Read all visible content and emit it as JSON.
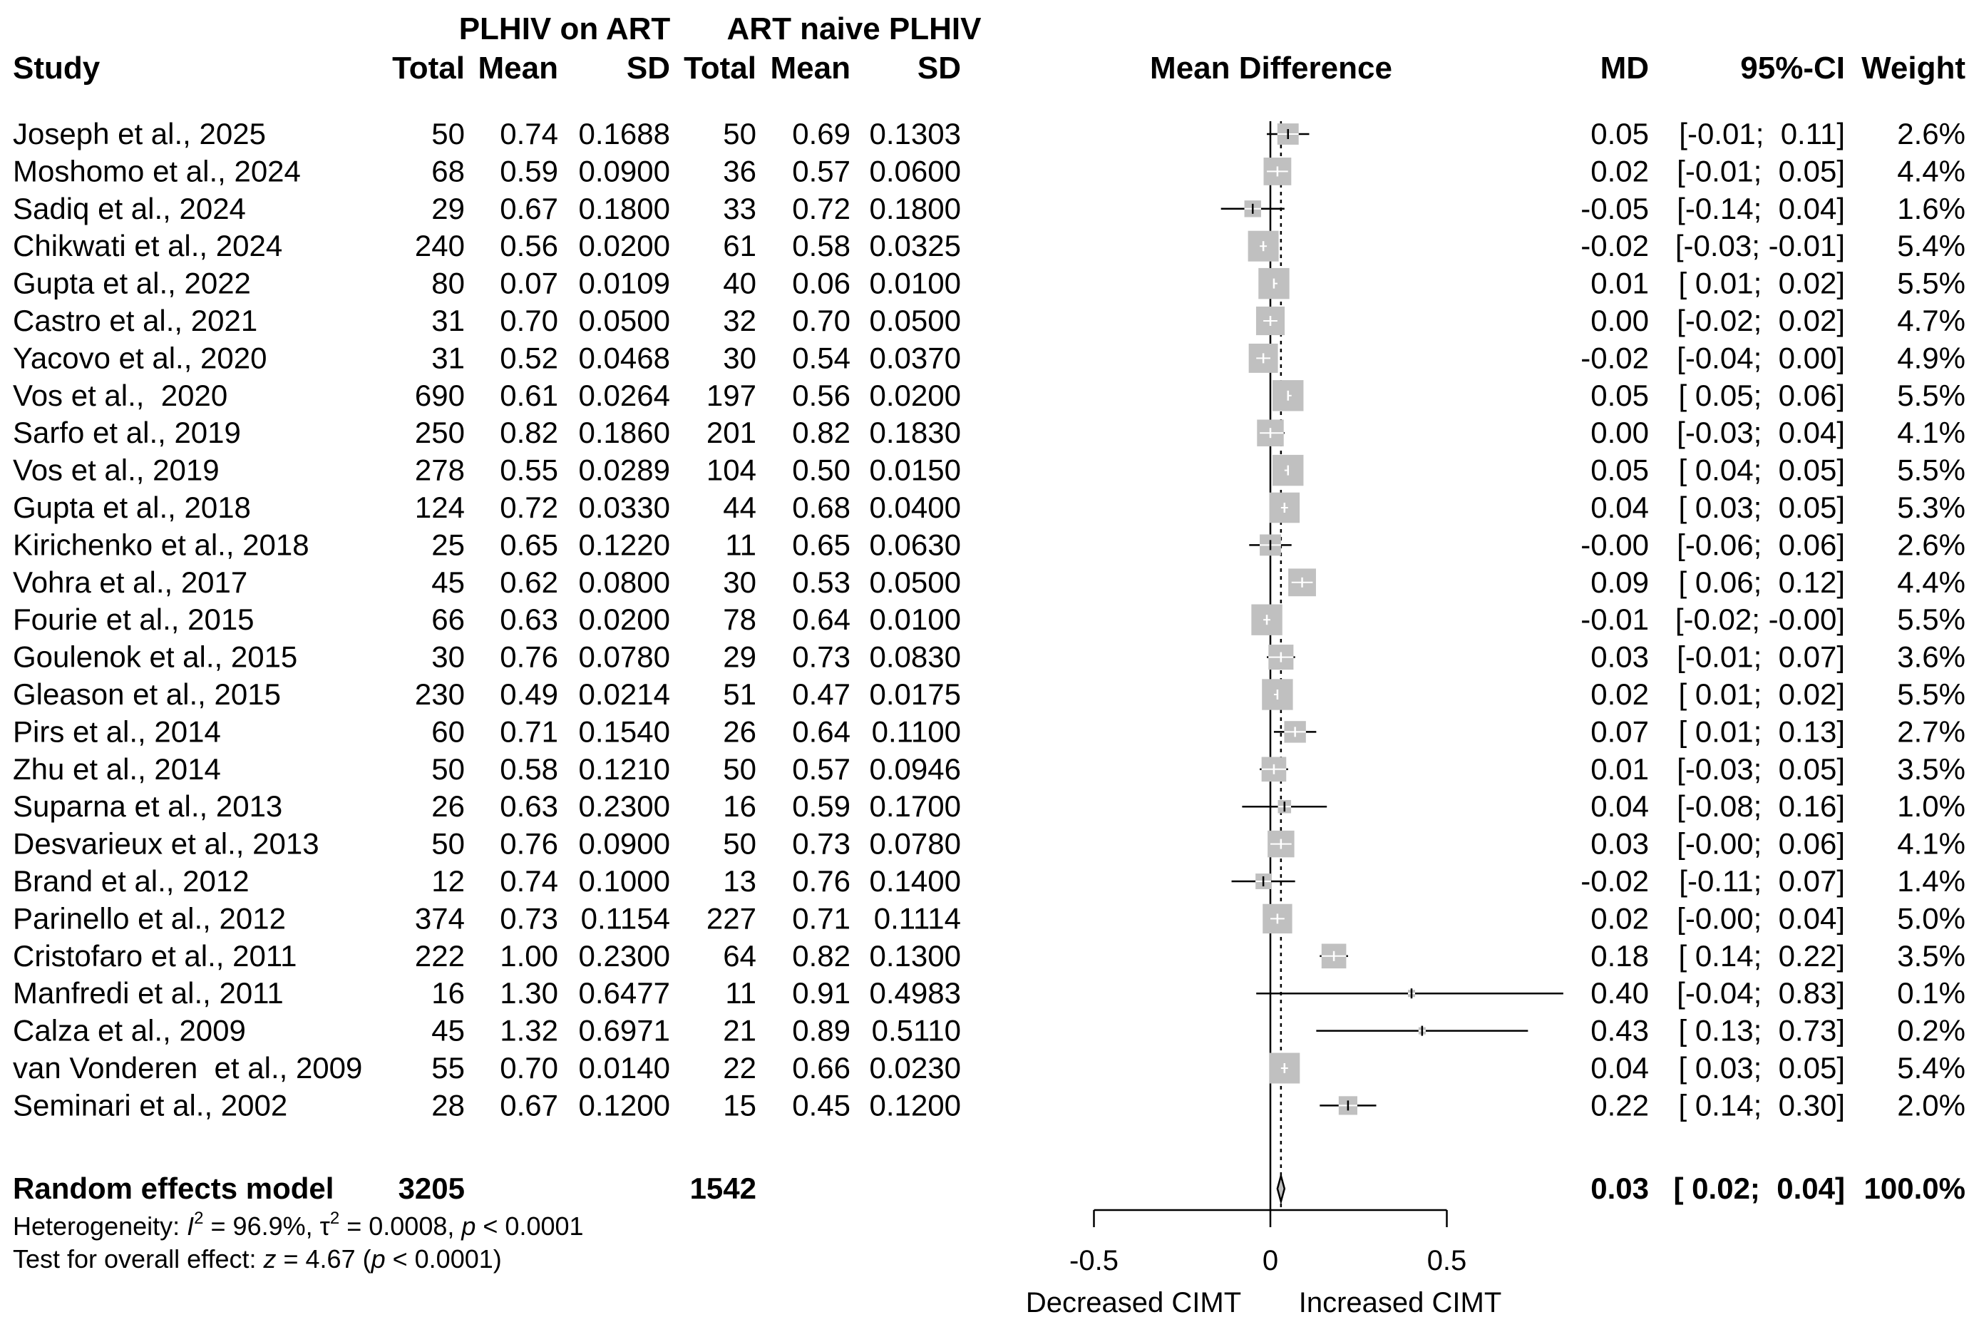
{
  "chart_data": {
    "type": "forest",
    "headers": {
      "group1": "PLHIV on ART",
      "group2": "ART naive PLHIV",
      "study": "Study",
      "total": "Total",
      "mean": "Mean",
      "sd": "SD",
      "plot": "Mean Difference",
      "md": "MD",
      "ci": "95%-CI",
      "weight": "Weight"
    },
    "studies": [
      {
        "study": "Joseph et al., 2025",
        "t1": "50",
        "m1": "0.74",
        "s1": "0.1688",
        "t2": "50",
        "m2": "0.69",
        "s2": "0.1303",
        "md_text": "0.05",
        "ci_text": "[-0.01;  0.11]",
        "w_text": "2.6%",
        "md": 0.05,
        "lo": -0.01,
        "hi": 0.11,
        "w": 2.6
      },
      {
        "study": "Moshomo et al., 2024",
        "t1": "68",
        "m1": "0.59",
        "s1": "0.0900",
        "t2": "36",
        "m2": "0.57",
        "s2": "0.0600",
        "md_text": "0.02",
        "ci_text": "[-0.01;  0.05]",
        "w_text": "4.4%",
        "md": 0.02,
        "lo": -0.01,
        "hi": 0.05,
        "w": 4.4
      },
      {
        "study": "Sadiq et al., 2024",
        "t1": "29",
        "m1": "0.67",
        "s1": "0.1800",
        "t2": "33",
        "m2": "0.72",
        "s2": "0.1800",
        "md_text": "-0.05",
        "ci_text": "[-0.14;  0.04]",
        "w_text": "1.6%",
        "md": -0.05,
        "lo": -0.14,
        "hi": 0.04,
        "w": 1.6
      },
      {
        "study": "Chikwati et al., 2024",
        "t1": "240",
        "m1": "0.56",
        "s1": "0.0200",
        "t2": "61",
        "m2": "0.58",
        "s2": "0.0325",
        "md_text": "-0.02",
        "ci_text": "[-0.03; -0.01]",
        "w_text": "5.4%",
        "md": -0.02,
        "lo": -0.03,
        "hi": -0.01,
        "w": 5.4
      },
      {
        "study": "Gupta et al., 2022",
        "t1": "80",
        "m1": "0.07",
        "s1": "0.0109",
        "t2": "40",
        "m2": "0.06",
        "s2": "0.0100",
        "md_text": "0.01",
        "ci_text": "[ 0.01;  0.02]",
        "w_text": "5.5%",
        "md": 0.01,
        "lo": 0.01,
        "hi": 0.02,
        "w": 5.5
      },
      {
        "study": "Castro et al., 2021",
        "t1": "31",
        "m1": "0.70",
        "s1": "0.0500",
        "t2": "32",
        "m2": "0.70",
        "s2": "0.0500",
        "md_text": "0.00",
        "ci_text": "[-0.02;  0.02]",
        "w_text": "4.7%",
        "md": 0.0,
        "lo": -0.02,
        "hi": 0.02,
        "w": 4.7
      },
      {
        "study": "Yacovo et al., 2020",
        "t1": "31",
        "m1": "0.52",
        "s1": "0.0468",
        "t2": "30",
        "m2": "0.54",
        "s2": "0.0370",
        "md_text": "-0.02",
        "ci_text": "[-0.04;  0.00]",
        "w_text": "4.9%",
        "md": -0.02,
        "lo": -0.04,
        "hi": 0.0,
        "w": 4.9
      },
      {
        "study": "Vos et al.,  2020",
        "t1": "690",
        "m1": "0.61",
        "s1": "0.0264",
        "t2": "197",
        "m2": "0.56",
        "s2": "0.0200",
        "md_text": "0.05",
        "ci_text": "[ 0.05;  0.06]",
        "w_text": "5.5%",
        "md": 0.05,
        "lo": 0.05,
        "hi": 0.06,
        "w": 5.5
      },
      {
        "study": "Sarfo et al., 2019",
        "t1": "250",
        "m1": "0.82",
        "s1": "0.1860",
        "t2": "201",
        "m2": "0.82",
        "s2": "0.1830",
        "md_text": "0.00",
        "ci_text": "[-0.03;  0.04]",
        "w_text": "4.1%",
        "md": 0.0,
        "lo": -0.03,
        "hi": 0.04,
        "w": 4.1
      },
      {
        "study": "Vos et al., 2019",
        "t1": "278",
        "m1": "0.55",
        "s1": "0.0289",
        "t2": "104",
        "m2": "0.50",
        "s2": "0.0150",
        "md_text": "0.05",
        "ci_text": "[ 0.04;  0.05]",
        "w_text": "5.5%",
        "md": 0.05,
        "lo": 0.04,
        "hi": 0.05,
        "w": 5.5
      },
      {
        "study": "Gupta et al., 2018",
        "t1": "124",
        "m1": "0.72",
        "s1": "0.0330",
        "t2": "44",
        "m2": "0.68",
        "s2": "0.0400",
        "md_text": "0.04",
        "ci_text": "[ 0.03;  0.05]",
        "w_text": "5.3%",
        "md": 0.04,
        "lo": 0.03,
        "hi": 0.05,
        "w": 5.3
      },
      {
        "study": "Kirichenko et al., 2018",
        "t1": "25",
        "m1": "0.65",
        "s1": "0.1220",
        "t2": "11",
        "m2": "0.65",
        "s2": "0.0630",
        "md_text": "-0.00",
        "ci_text": "[-0.06;  0.06]",
        "w_text": "2.6%",
        "md": 0.0,
        "lo": -0.06,
        "hi": 0.06,
        "w": 2.6
      },
      {
        "study": "Vohra et al., 2017",
        "t1": "45",
        "m1": "0.62",
        "s1": "0.0800",
        "t2": "30",
        "m2": "0.53",
        "s2": "0.0500",
        "md_text": "0.09",
        "ci_text": "[ 0.06;  0.12]",
        "w_text": "4.4%",
        "md": 0.09,
        "lo": 0.06,
        "hi": 0.12,
        "w": 4.4
      },
      {
        "study": "Fourie et al., 2015",
        "t1": "66",
        "m1": "0.63",
        "s1": "0.0200",
        "t2": "78",
        "m2": "0.64",
        "s2": "0.0100",
        "md_text": "-0.01",
        "ci_text": "[-0.02; -0.00]",
        "w_text": "5.5%",
        "md": -0.01,
        "lo": -0.02,
        "hi": 0.0,
        "w": 5.5
      },
      {
        "study": "Goulenok et al., 2015",
        "t1": "30",
        "m1": "0.76",
        "s1": "0.0780",
        "t2": "29",
        "m2": "0.73",
        "s2": "0.0830",
        "md_text": "0.03",
        "ci_text": "[-0.01;  0.07]",
        "w_text": "3.6%",
        "md": 0.03,
        "lo": -0.01,
        "hi": 0.07,
        "w": 3.6
      },
      {
        "study": "Gleason et al., 2015",
        "t1": "230",
        "m1": "0.49",
        "s1": "0.0214",
        "t2": "51",
        "m2": "0.47",
        "s2": "0.0175",
        "md_text": "0.02",
        "ci_text": "[ 0.01;  0.02]",
        "w_text": "5.5%",
        "md": 0.02,
        "lo": 0.01,
        "hi": 0.02,
        "w": 5.5
      },
      {
        "study": "Pirs et al., 2014",
        "t1": "60",
        "m1": "0.71",
        "s1": "0.1540",
        "t2": "26",
        "m2": "0.64",
        "s2": "0.1100",
        "md_text": "0.07",
        "ci_text": "[ 0.01;  0.13]",
        "w_text": "2.7%",
        "md": 0.07,
        "lo": 0.01,
        "hi": 0.13,
        "w": 2.7
      },
      {
        "study": "Zhu et al., 2014",
        "t1": "50",
        "m1": "0.58",
        "s1": "0.1210",
        "t2": "50",
        "m2": "0.57",
        "s2": "0.0946",
        "md_text": "0.01",
        "ci_text": "[-0.03;  0.05]",
        "w_text": "3.5%",
        "md": 0.01,
        "lo": -0.03,
        "hi": 0.05,
        "w": 3.5
      },
      {
        "study": "Suparna et al., 2013",
        "t1": "26",
        "m1": "0.63",
        "s1": "0.2300",
        "t2": "16",
        "m2": "0.59",
        "s2": "0.1700",
        "md_text": "0.04",
        "ci_text": "[-0.08;  0.16]",
        "w_text": "1.0%",
        "md": 0.04,
        "lo": -0.08,
        "hi": 0.16,
        "w": 1.0
      },
      {
        "study": "Desvarieux et al., 2013",
        "t1": "50",
        "m1": "0.76",
        "s1": "0.0900",
        "t2": "50",
        "m2": "0.73",
        "s2": "0.0780",
        "md_text": "0.03",
        "ci_text": "[-0.00;  0.06]",
        "w_text": "4.1%",
        "md": 0.03,
        "lo": 0.0,
        "hi": 0.06,
        "w": 4.1
      },
      {
        "study": "Brand et al., 2012",
        "t1": "12",
        "m1": "0.74",
        "s1": "0.1000",
        "t2": "13",
        "m2": "0.76",
        "s2": "0.1400",
        "md_text": "-0.02",
        "ci_text": "[-0.11;  0.07]",
        "w_text": "1.4%",
        "md": -0.02,
        "lo": -0.11,
        "hi": 0.07,
        "w": 1.4
      },
      {
        "study": "Parinello et al., 2012",
        "t1": "374",
        "m1": "0.73",
        "s1": "0.1154",
        "t2": "227",
        "m2": "0.71",
        "s2": "0.1114",
        "md_text": "0.02",
        "ci_text": "[-0.00;  0.04]",
        "w_text": "5.0%",
        "md": 0.02,
        "lo": 0.0,
        "hi": 0.04,
        "w": 5.0
      },
      {
        "study": "Cristofaro et al., 2011",
        "t1": "222",
        "m1": "1.00",
        "s1": "0.2300",
        "t2": "64",
        "m2": "0.82",
        "s2": "0.1300",
        "md_text": "0.18",
        "ci_text": "[ 0.14;  0.22]",
        "w_text": "3.5%",
        "md": 0.18,
        "lo": 0.14,
        "hi": 0.22,
        "w": 3.5
      },
      {
        "study": "Manfredi et al., 2011",
        "t1": "16",
        "m1": "1.30",
        "s1": "0.6477",
        "t2": "11",
        "m2": "0.91",
        "s2": "0.4983",
        "md_text": "0.40",
        "ci_text": "[-0.04;  0.83]",
        "w_text": "0.1%",
        "md": 0.4,
        "lo": -0.04,
        "hi": 0.83,
        "w": 0.1
      },
      {
        "study": "Calza et al., 2009",
        "t1": "45",
        "m1": "1.32",
        "s1": "0.6971",
        "t2": "21",
        "m2": "0.89",
        "s2": "0.5110",
        "md_text": "0.43",
        "ci_text": "[ 0.13;  0.73]",
        "w_text": "0.2%",
        "md": 0.43,
        "lo": 0.13,
        "hi": 0.73,
        "w": 0.2
      },
      {
        "study": "van Vonderen  et al., 2009",
        "t1": "55",
        "m1": "0.70",
        "s1": "0.0140",
        "t2": "22",
        "m2": "0.66",
        "s2": "0.0230",
        "md_text": "0.04",
        "ci_text": "[ 0.03;  0.05]",
        "w_text": "5.4%",
        "md": 0.04,
        "lo": 0.03,
        "hi": 0.05,
        "w": 5.4
      },
      {
        "study": "Seminari et al., 2002",
        "t1": "28",
        "m1": "0.67",
        "s1": "0.1200",
        "t2": "15",
        "m2": "0.45",
        "s2": "0.1200",
        "md_text": "0.22",
        "ci_text": "[ 0.14;  0.30]",
        "w_text": "2.0%",
        "md": 0.22,
        "lo": 0.14,
        "hi": 0.3,
        "w": 2.0
      }
    ],
    "pooled": {
      "label": "Random effects model",
      "t1": "3205",
      "t2": "1542",
      "md_text": "0.03",
      "ci_text": "[ 0.02;  0.04]",
      "w_text": "100.0%",
      "md": 0.03,
      "lo": 0.02,
      "hi": 0.04
    },
    "heterogeneity": {
      "prefix": "Heterogeneity: ",
      "i2_sym": "I",
      "sup2": "2",
      "i2_val": " = 96.9%, ",
      "tau_sym": "τ",
      "tau_val": " = 0.0008, ",
      "p_sym": "p",
      "p_val": " < 0.0001"
    },
    "overall_test": {
      "prefix": "Test for overall effect: ",
      "z_sym": "z",
      "z_val": " = 4.67 (",
      "p_sym": "p",
      "p_val": " < 0.0001)"
    },
    "x_axis": {
      "range": [
        -0.5,
        0.5
      ],
      "ticks": [
        -0.5,
        0,
        0.5
      ],
      "tick_labels": [
        "-0.5",
        "0",
        "0.5"
      ],
      "label_left": "Decreased CIMT",
      "label_right": "Increased CIMT"
    },
    "colors": {
      "box": "#c0c0c0",
      "line": "#000000",
      "text": "#000000"
    }
  }
}
